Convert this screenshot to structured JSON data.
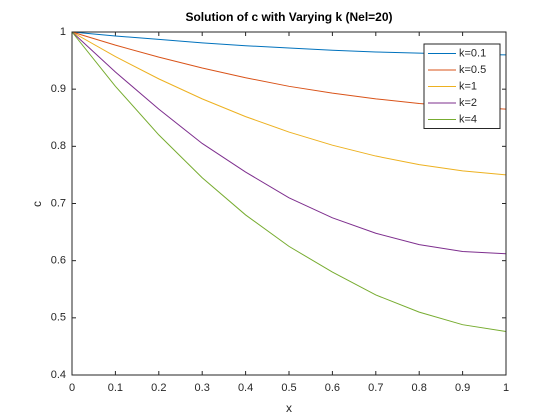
{
  "chart_data": {
    "type": "line",
    "title": "Solution of c with Varying k (Nel=20)",
    "xlabel": "x",
    "ylabel": "c",
    "x": [
      0,
      0.1,
      0.2,
      0.3,
      0.4,
      0.5,
      0.6,
      0.7,
      0.8,
      0.9,
      1
    ],
    "series": [
      {
        "name": "k=0.1",
        "color": "#0072BD",
        "values": [
          1,
          0.993,
          0.987,
          0.981,
          0.976,
          0.972,
          0.968,
          0.965,
          0.963,
          0.961,
          0.96
        ]
      },
      {
        "name": "k=0.5",
        "color": "#D95319",
        "values": [
          1,
          0.977,
          0.956,
          0.937,
          0.92,
          0.905,
          0.893,
          0.883,
          0.875,
          0.869,
          0.865
        ]
      },
      {
        "name": "k=1",
        "color": "#EDB120",
        "values": [
          1,
          0.957,
          0.918,
          0.883,
          0.852,
          0.825,
          0.802,
          0.783,
          0.768,
          0.757,
          0.75
        ]
      },
      {
        "name": "k=2",
        "color": "#7E2F8E",
        "values": [
          1,
          0.93,
          0.865,
          0.805,
          0.755,
          0.71,
          0.675,
          0.648,
          0.628,
          0.616,
          0.612
        ]
      },
      {
        "name": "k=4",
        "color": "#77AC30",
        "values": [
          1,
          0.905,
          0.82,
          0.745,
          0.68,
          0.625,
          0.58,
          0.54,
          0.51,
          0.488,
          0.476
        ]
      }
    ],
    "xlim": [
      0,
      1
    ],
    "xticks": [
      0,
      0.1,
      0.2,
      0.3,
      0.4,
      0.5,
      0.6,
      0.7,
      0.8,
      0.9,
      1
    ],
    "ylim": [
      0.4,
      1
    ],
    "yticks": [
      0.4,
      0.5,
      0.6,
      0.7,
      0.8,
      0.9,
      1
    ],
    "legend": "upper right"
  }
}
